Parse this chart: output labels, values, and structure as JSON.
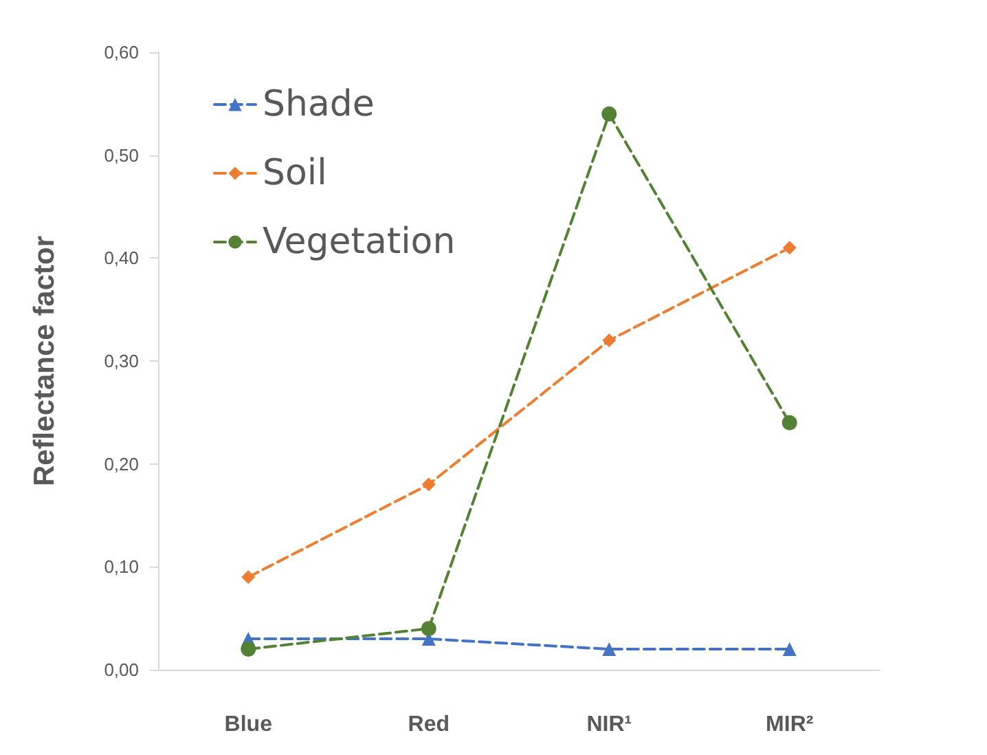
{
  "chart_data": {
    "type": "line",
    "ylabel": "Reflectance factor",
    "categories": [
      "Blue",
      "Red",
      "NIR¹",
      "MIR²"
    ],
    "series": [
      {
        "name": "Shade",
        "color": "#4472c4",
        "values": [
          0.03,
          0.03,
          0.02,
          0.02
        ],
        "marker": "triangle"
      },
      {
        "name": "Soil",
        "color": "#ed7d31",
        "values": [
          0.09,
          0.18,
          0.32,
          0.41
        ],
        "marker": "diamond"
      },
      {
        "name": "Vegetation",
        "color": "#548235",
        "values": [
          0.02,
          0.04,
          0.54,
          0.24
        ],
        "marker": "circle"
      }
    ],
    "ylim": [
      0,
      0.6
    ],
    "yticks": [
      {
        "value": 0,
        "label": "0,00"
      },
      {
        "value": 0.1,
        "label": "0,10"
      },
      {
        "value": 0.2,
        "label": "0,20"
      },
      {
        "value": 0.3,
        "label": "0,30"
      },
      {
        "value": 0.4,
        "label": "0,40"
      },
      {
        "value": 0.5,
        "label": "0,50"
      },
      {
        "value": 0.6,
        "label": "0,60"
      }
    ],
    "grid": false,
    "legend": "top left",
    "line_style": "dashed"
  }
}
